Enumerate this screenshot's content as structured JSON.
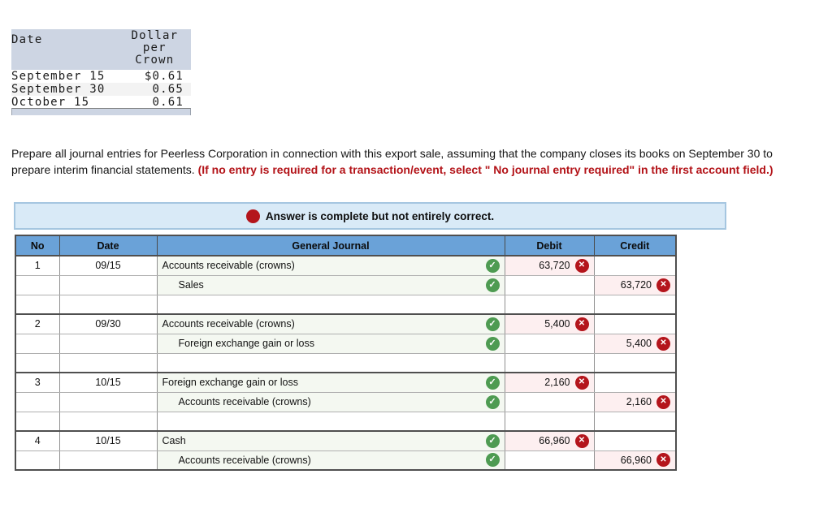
{
  "rate_table": {
    "col1_header": "Date",
    "col2_header_lines": [
      "Dollar",
      "per",
      "Crown"
    ],
    "rows": [
      {
        "date": "September 15",
        "rate": "$0.61"
      },
      {
        "date": "September 30",
        "rate": "0.65"
      },
      {
        "date": "October 15",
        "rate": "0.61"
      }
    ]
  },
  "instructions": {
    "normal_text": "Prepare all journal entries for Peerless Corporation in connection with this export sale, assuming that the company closes its books on September 30 to prepare interim financial statements. ",
    "emphasis_text": "(If no entry is required for a transaction/event, select \" No journal entry required\" in the first account field.)"
  },
  "status_banner": {
    "icon": "x-circle",
    "text": "Answer is complete but not entirely correct."
  },
  "journal_table": {
    "columns": {
      "no": "No",
      "date": "Date",
      "journal": "General Journal",
      "debit": "Debit",
      "credit": "Credit"
    },
    "rows": [
      {
        "type": "entry",
        "group_start": true,
        "no": "1",
        "date": "09/15",
        "account": "Accounts receivable (crowns)",
        "indent": false,
        "correct_account": true,
        "debit": "63,720",
        "debit_wrong": true,
        "credit": "",
        "credit_wrong": false
      },
      {
        "type": "entry",
        "group_start": false,
        "no": "",
        "date": "",
        "account": "Sales",
        "indent": true,
        "correct_account": true,
        "debit": "",
        "debit_wrong": false,
        "credit": "63,720",
        "credit_wrong": true
      },
      {
        "type": "blank",
        "group_start": false
      },
      {
        "type": "entry",
        "group_start": true,
        "no": "2",
        "date": "09/30",
        "account": "Accounts receivable (crowns)",
        "indent": false,
        "correct_account": true,
        "debit": "5,400",
        "debit_wrong": true,
        "credit": "",
        "credit_wrong": false
      },
      {
        "type": "entry",
        "group_start": false,
        "no": "",
        "date": "",
        "account": "Foreign exchange gain or loss",
        "indent": true,
        "correct_account": true,
        "debit": "",
        "debit_wrong": false,
        "credit": "5,400",
        "credit_wrong": true
      },
      {
        "type": "blank",
        "group_start": false
      },
      {
        "type": "entry",
        "group_start": true,
        "no": "3",
        "date": "10/15",
        "account": "Foreign exchange gain or loss",
        "indent": false,
        "correct_account": true,
        "debit": "2,160",
        "debit_wrong": true,
        "credit": "",
        "credit_wrong": false
      },
      {
        "type": "entry",
        "group_start": false,
        "no": "",
        "date": "",
        "account": "Accounts receivable (crowns)",
        "indent": true,
        "correct_account": true,
        "debit": "",
        "debit_wrong": false,
        "credit": "2,160",
        "credit_wrong": true
      },
      {
        "type": "blank",
        "group_start": false
      },
      {
        "type": "entry",
        "group_start": true,
        "no": "4",
        "date": "10/15",
        "account": "Cash",
        "indent": false,
        "correct_account": true,
        "debit": "66,960",
        "debit_wrong": true,
        "credit": "",
        "credit_wrong": false
      },
      {
        "type": "entry",
        "group_start": false,
        "no": "",
        "date": "",
        "account": "Accounts receivable (crowns)",
        "indent": true,
        "correct_account": true,
        "debit": "",
        "debit_wrong": false,
        "credit": "66,960",
        "credit_wrong": true
      }
    ]
  },
  "colors": {
    "header_blue": "#6aa2d8",
    "banner_blue": "#d9eaf7",
    "correct_green": "#4e9b52",
    "wrong_red": "#b4151c",
    "account_cell_tint": "#f4f8f1",
    "amount_cell_tint": "#fdeff0",
    "emphasis_red": "#b31318",
    "rate_header_gray": "#cdd5e3"
  },
  "icons": {
    "check_glyph": "✓",
    "x_glyph": "✕"
  }
}
